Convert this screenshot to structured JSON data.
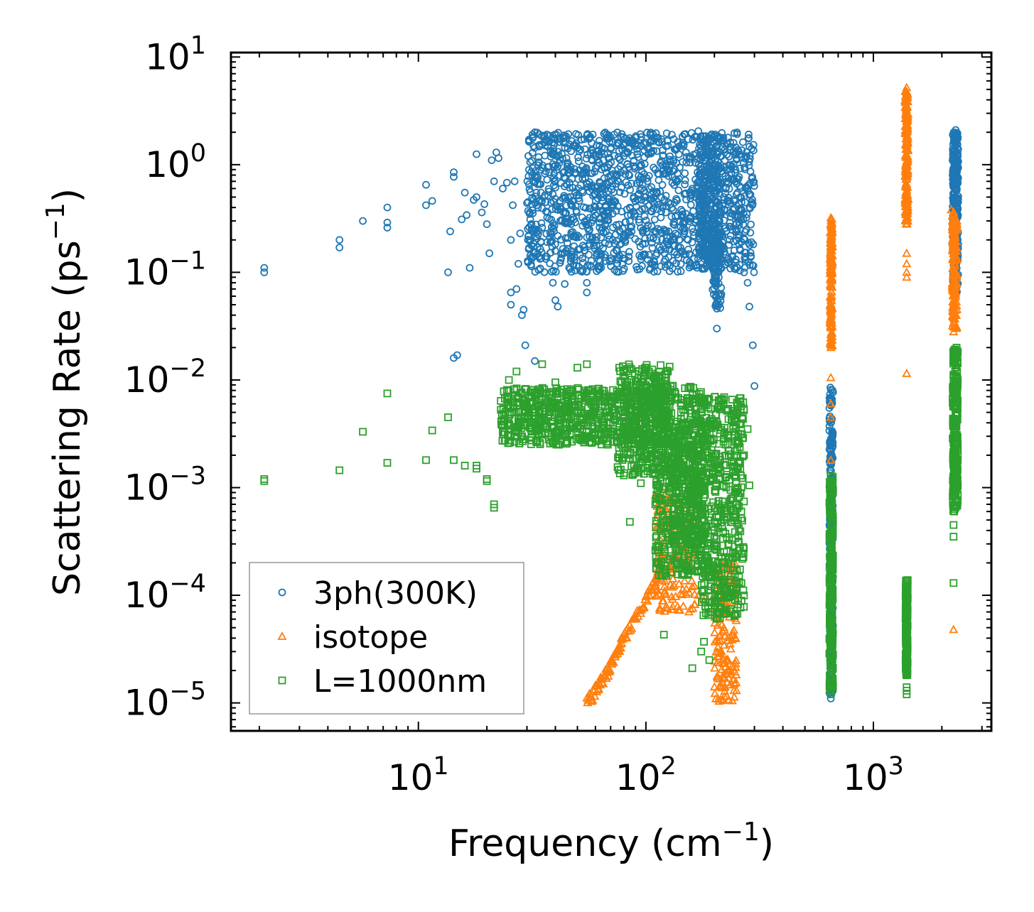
{
  "chart_data": {
    "type": "scatter",
    "title": "",
    "xlabel": "Frequency (cm",
    "xlabel_sup": "−1",
    "xlabel_end": ")",
    "ylabel": "Scattering Rate (ps",
    "ylabel_sup": "−1",
    "ylabel_end": ")",
    "xscale": "log",
    "yscale": "log",
    "xlim": [
      1.5,
      3300
    ],
    "ylim": [
      5.5e-06,
      11
    ],
    "x_major_ticks": [
      {
        "value": 10,
        "base": "10",
        "exp": "1"
      },
      {
        "value": 100,
        "base": "10",
        "exp": "2"
      },
      {
        "value": 1000,
        "base": "10",
        "exp": "3"
      }
    ],
    "y_major_ticks": [
      {
        "value": 1e-05,
        "base": "10",
        "exp": "−5"
      },
      {
        "value": 0.0001,
        "base": "10",
        "exp": "−4"
      },
      {
        "value": 0.001,
        "base": "10",
        "exp": "−3"
      },
      {
        "value": 0.01,
        "base": "10",
        "exp": "−2"
      },
      {
        "value": 0.1,
        "base": "10",
        "exp": "−1"
      },
      {
        "value": 1,
        "base": "10",
        "exp": "0"
      },
      {
        "value": 10,
        "base": "10",
        "exp": "1"
      }
    ],
    "legend_position": "bottom-left",
    "series": [
      {
        "name": "3ph(300K)",
        "marker": "circle",
        "color": "#1f77b4",
        "points": [
          [
            2.1,
            0.11
          ],
          [
            2.1,
            0.1
          ],
          [
            4.5,
            0.2
          ],
          [
            4.5,
            0.17
          ],
          [
            5.7,
            0.3
          ],
          [
            7.3,
            0.4
          ],
          [
            7.3,
            0.29
          ],
          [
            7.3,
            0.26
          ],
          [
            10.8,
            0.65
          ],
          [
            10.8,
            0.42
          ],
          [
            11.5,
            0.46
          ],
          [
            13.5,
            0.1
          ],
          [
            13.8,
            0.24
          ],
          [
            14.3,
            0.85
          ],
          [
            14.3,
            0.77
          ],
          [
            14.3,
            0.016
          ],
          [
            14.8,
            0.017
          ],
          [
            15.5,
            0.31
          ],
          [
            16.0,
            0.55
          ],
          [
            16.3,
            0.34
          ],
          [
            16.8,
            0.11
          ],
          [
            17.5,
            0.47
          ],
          [
            18.0,
            0.5
          ],
          [
            18.0,
            1.25
          ],
          [
            19.0,
            0.36
          ],
          [
            19.5,
            0.43
          ],
          [
            20.0,
            0.28
          ],
          [
            20.5,
            0.15
          ],
          [
            21.0,
            1.1
          ],
          [
            21.5,
            0.7
          ],
          [
            22.0,
            1.3
          ],
          [
            22.5,
            1.15
          ],
          [
            23.5,
            0.6
          ],
          [
            24.5,
            0.68
          ],
          [
            25.5,
            0.2
          ],
          [
            25.5,
            0.065
          ],
          [
            25.5,
            0.05
          ],
          [
            26.0,
            0.42
          ],
          [
            26.5,
            0.7
          ],
          [
            27.0,
            0.07
          ],
          [
            27.5,
            0.12
          ],
          [
            28.0,
            0.23
          ],
          [
            28.5,
            0.04
          ],
          [
            29.0,
            0.045
          ],
          [
            29.5,
            0.021
          ],
          [
            30.0,
            0.44
          ],
          [
            30.5,
            0.78
          ],
          [
            31.0,
            0.31
          ],
          [
            31.5,
            0.43
          ],
          [
            32.5,
            0.015
          ],
          [
            33.0,
            0.55
          ],
          [
            34.0,
            0.66
          ],
          [
            35.0,
            0.26
          ],
          [
            36.0,
            0.52
          ],
          [
            37.0,
            0.36
          ],
          [
            38.0,
            0.19
          ],
          [
            39.0,
            0.08
          ],
          [
            40.0,
            0.055
          ],
          [
            41.0,
            0.048
          ],
          [
            42.0,
            0.3
          ],
          [
            43.0,
            0.15
          ],
          [
            44.0,
            0.078
          ],
          [
            45.0,
            0.65
          ],
          [
            47.0,
            0.42
          ],
          [
            50.0,
            0.22
          ],
          [
            55.0,
            0.08
          ],
          [
            55.0,
            0.065
          ],
          [
            60.0,
            1.2
          ],
          [
            62.0,
            0.13
          ],
          [
            65.0,
            1.1
          ],
          [
            70.0,
            1.4
          ],
          [
            75.0,
            1.6
          ],
          [
            80.0,
            1.2
          ],
          [
            85.0,
            0.4
          ],
          [
            90.0,
            0.95
          ],
          [
            95.0,
            1.7
          ],
          [
            100.0,
            0.5
          ],
          [
            105.0,
            1.3
          ],
          [
            110.0,
            0.9
          ],
          [
            120.0,
            0.25
          ],
          [
            125.0,
            1.5
          ],
          [
            130.0,
            1.9
          ],
          [
            140.0,
            0.2
          ],
          [
            150.0,
            1.3
          ],
          [
            160.0,
            0.6
          ],
          [
            170.0,
            2.05
          ],
          [
            180.0,
            0.38
          ],
          [
            190.0,
            0.12
          ],
          [
            200.0,
            0.08
          ],
          [
            205.0,
            0.03
          ],
          [
            210.0,
            1.8
          ],
          [
            215.0,
            1.2
          ],
          [
            220.0,
            0.5
          ],
          [
            230.0,
            0.9
          ],
          [
            240.0,
            0.35
          ],
          [
            250.0,
            0.28
          ],
          [
            260.0,
            0.16
          ],
          [
            270.0,
            0.1
          ],
          [
            280.0,
            0.08
          ],
          [
            285.0,
            0.048
          ],
          [
            295.0,
            0.021
          ],
          [
            300.0,
            0.0088
          ],
          [
            650,
            0.0081
          ],
          [
            650,
            0.006
          ],
          [
            650,
            0.004
          ],
          [
            650,
            0.002
          ],
          [
            650,
            0.001
          ],
          [
            650,
            0.0003
          ],
          [
            650,
            3e-05
          ],
          [
            650,
            1.1e-05
          ],
          [
            2300,
            2.1
          ],
          [
            2300,
            0.25
          ],
          [
            2300,
            0.065
          ]
        ],
        "bands": [
          {
            "x": [
              30,
              300
            ],
            "y_min": 0.1,
            "y_max": 2.0,
            "count": 1400
          },
          {
            "x": [
              170,
              215
            ],
            "y_min": 0.12,
            "y_max": 1.9,
            "count": 260
          },
          {
            "x": [
              195,
              215
            ],
            "y_min": 0.045,
            "y_max": 0.4,
            "count": 80
          },
          {
            "x": [
              640,
              665
            ],
            "y_min": 1.1e-05,
            "y_max": 0.0085,
            "count": 260
          },
          {
            "x": [
              2230,
              2360
            ],
            "y_min": 0.065,
            "y_max": 2.0,
            "count": 320
          }
        ]
      },
      {
        "name": "isotope",
        "marker": "triangle",
        "color": "#ff7f0e",
        "points": [
          [
            650,
            0.32
          ],
          [
            650,
            0.2
          ],
          [
            650,
            0.1
          ],
          [
            650,
            0.05
          ],
          [
            650,
            0.02
          ],
          [
            650,
            0.0105
          ],
          [
            650,
            0.006
          ],
          [
            650,
            0.0045
          ],
          [
            650,
            0.0018
          ],
          [
            650,
            0.001
          ],
          [
            1400,
            5.2
          ],
          [
            1400,
            4.0
          ],
          [
            1400,
            2.0
          ],
          [
            1400,
            1.0
          ],
          [
            1400,
            0.5
          ],
          [
            1400,
            0.28
          ],
          [
            1400,
            0.15
          ],
          [
            1400,
            0.12
          ],
          [
            1400,
            0.1
          ],
          [
            1400,
            0.09
          ],
          [
            1400,
            0.0115
          ],
          [
            2200,
            0.38
          ],
          [
            2250,
            0.35
          ],
          [
            2280,
            0.3
          ],
          [
            2300,
            0.1
          ],
          [
            2300,
            0.03
          ],
          [
            2250,
            0.028
          ],
          [
            2250,
            4.8e-05
          ],
          [
            120,
            0.0005
          ],
          [
            130,
            0.0009
          ],
          [
            140,
            0.0007
          ],
          [
            150,
            0.0002
          ],
          [
            160,
            0.00012
          ],
          [
            170,
            0.0001
          ],
          [
            180,
            9e-05
          ],
          [
            200,
            0.0001
          ],
          [
            220,
            5e-05
          ],
          [
            230,
            3.8e-05
          ],
          [
            240,
            2.2e-05
          ],
          [
            250,
            1.3e-05
          ]
        ],
        "curve": [
          [
            55,
            1e-05
          ],
          [
            60,
            1.3e-05
          ],
          [
            65,
            1.7e-05
          ],
          [
            70,
            2.2e-05
          ],
          [
            75,
            3e-05
          ],
          [
            80,
            4e-05
          ],
          [
            90,
            6e-05
          ],
          [
            100,
            9e-05
          ],
          [
            110,
            0.00013
          ],
          [
            115,
            0.00018
          ],
          [
            120,
            0.00025
          ]
        ],
        "bands": [
          {
            "x": [
              110,
              165
            ],
            "y_min": 7e-05,
            "y_max": 0.0009,
            "count": 160
          },
          {
            "x": [
              200,
              250
            ],
            "y_min": 1e-05,
            "y_max": 0.0002,
            "count": 160
          },
          {
            "x": [
              645,
              660
            ],
            "y_min": 0.02,
            "y_max": 0.32,
            "count": 140
          },
          {
            "x": [
              1380,
              1420
            ],
            "y_min": 0.28,
            "y_max": 5.0,
            "count": 180
          },
          {
            "x": [
              2220,
              2330
            ],
            "y_min": 0.03,
            "y_max": 0.38,
            "count": 160
          }
        ]
      },
      {
        "name": "L=1000nm",
        "marker": "square",
        "color": "#2ca02c",
        "points": [
          [
            2.1,
            0.0012
          ],
          [
            2.1,
            0.00115
          ],
          [
            4.5,
            0.00145
          ],
          [
            5.7,
            0.0033
          ],
          [
            7.3,
            0.0017
          ],
          [
            7.3,
            0.0075
          ],
          [
            10.8,
            0.0018
          ],
          [
            11.5,
            0.0034
          ],
          [
            13.5,
            0.0045
          ],
          [
            14.3,
            0.0018
          ],
          [
            16.0,
            0.0016
          ],
          [
            18.0,
            0.0016
          ],
          [
            18.0,
            0.0015
          ],
          [
            20.0,
            0.0012
          ],
          [
            20.0,
            0.00115
          ],
          [
            21.5,
            0.0007
          ],
          [
            21.5,
            0.00065
          ],
          [
            25.0,
            0.01
          ],
          [
            27.0,
            0.012
          ],
          [
            35.0,
            0.014
          ],
          [
            40.0,
            0.0095
          ],
          [
            50.0,
            0.013
          ],
          [
            55.0,
            0.014
          ],
          [
            60.0,
            0.0032
          ],
          [
            65.0,
            0.0028
          ],
          [
            70.0,
            0.0065
          ],
          [
            80.0,
            0.0013
          ],
          [
            85.0,
            0.00048
          ],
          [
            95.0,
            0.0011
          ],
          [
            110.0,
            0.0007
          ],
          [
            120.0,
            4.3e-05
          ],
          [
            160.0,
            2.1e-05
          ],
          [
            175.0,
            3e-05
          ],
          [
            180.0,
            3.7e-05
          ],
          [
            190.0,
            2.5e-05
          ],
          [
            200.0,
            0.0004
          ],
          [
            220.0,
            0.0002
          ],
          [
            230.0,
            0.0003
          ],
          [
            240.0,
            0.0008
          ],
          [
            250.0,
            0.0007
          ],
          [
            260.0,
            0.0015
          ],
          [
            270.0,
            0.002
          ],
          [
            280.0,
            0.0035
          ],
          [
            285.0,
            0.00105
          ],
          [
            650,
            0.0013
          ],
          [
            650,
            0.0009
          ],
          [
            650,
            1.2e-05
          ],
          [
            1400,
            1.4e-05
          ],
          [
            1400,
            1.3e-05
          ],
          [
            1400,
            1.2e-05
          ],
          [
            2250,
            0.00045
          ],
          [
            2250,
            0.00035
          ],
          [
            2250,
            0.00013
          ]
        ],
        "bands": [
          {
            "x": [
              23,
              125
            ],
            "y_min": 0.0025,
            "y_max": 0.0085,
            "count": 700
          },
          {
            "x": [
              75,
              130
            ],
            "y_min": 0.0013,
            "y_max": 0.014,
            "count": 320
          },
          {
            "x": [
              110,
              175
            ],
            "y_min": 0.00015,
            "y_max": 0.009,
            "count": 520
          },
          {
            "x": [
              130,
              180
            ],
            "y_min": 0.0003,
            "y_max": 0.004,
            "count": 200
          },
          {
            "x": [
              175,
              270
            ],
            "y_min": 6e-05,
            "y_max": 0.007,
            "count": 520
          },
          {
            "x": [
              640,
              665
            ],
            "y_min": 1.2e-05,
            "y_max": 0.0013,
            "count": 240
          },
          {
            "x": [
              1385,
              1415
            ],
            "y_min": 1.8e-05,
            "y_max": 0.00014,
            "count": 220
          },
          {
            "x": [
              2230,
              2350
            ],
            "y_min": 0.0006,
            "y_max": 0.02,
            "count": 260
          }
        ]
      }
    ]
  }
}
